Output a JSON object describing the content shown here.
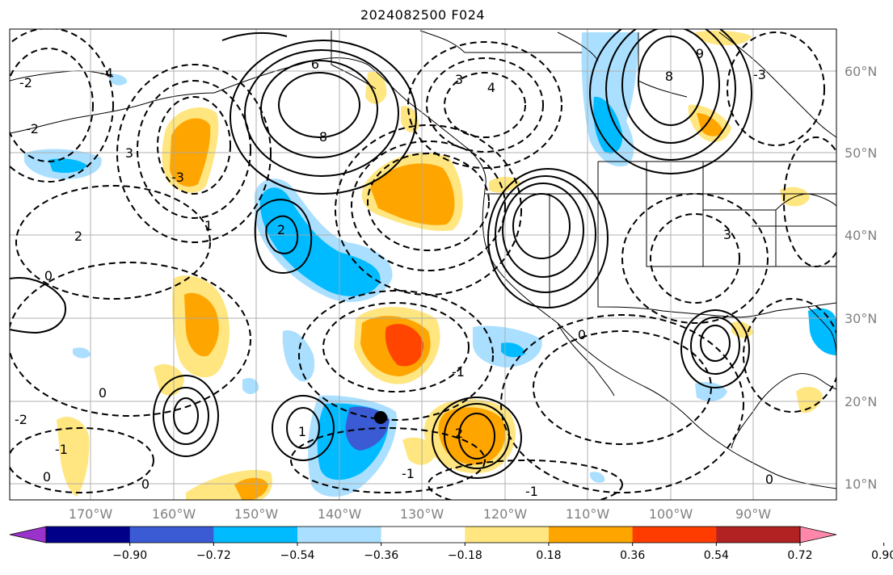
{
  "title": "2024082500 F024",
  "lat_labels": [
    "60°N",
    "50°N",
    "40°N",
    "30°N",
    "20°N",
    "10°N"
  ],
  "lon_labels": [
    "170°W",
    "160°W",
    "150°W",
    "140°W",
    "130°W",
    "120°W",
    "110°W",
    "100°W",
    "90°W"
  ],
  "colorbar": {
    "ticks": [
      "−0.90",
      "−0.72",
      "−0.54",
      "−0.36",
      "−0.18",
      "0.18",
      "0.36",
      "0.54",
      "0.72",
      "0.90"
    ],
    "colors": [
      "#9933cc",
      "#000088",
      "#3a5bd4",
      "#00bbff",
      "#aadfff",
      "#ffffff",
      "#ffe680",
      "#ffa500",
      "#ff3c00",
      "#b22222",
      "#ff88aa"
    ]
  },
  "contour_labels": [
    "6",
    "8",
    "4",
    "3",
    "3",
    "2",
    "0",
    "-1",
    "-2",
    "-3",
    "-4",
    "1",
    "0",
    "2",
    "-1",
    "0",
    "-2",
    "3",
    "8",
    "9",
    "-3",
    "2",
    "0",
    "0",
    "-1",
    "-1",
    "1",
    "0",
    "-2"
  ]
}
